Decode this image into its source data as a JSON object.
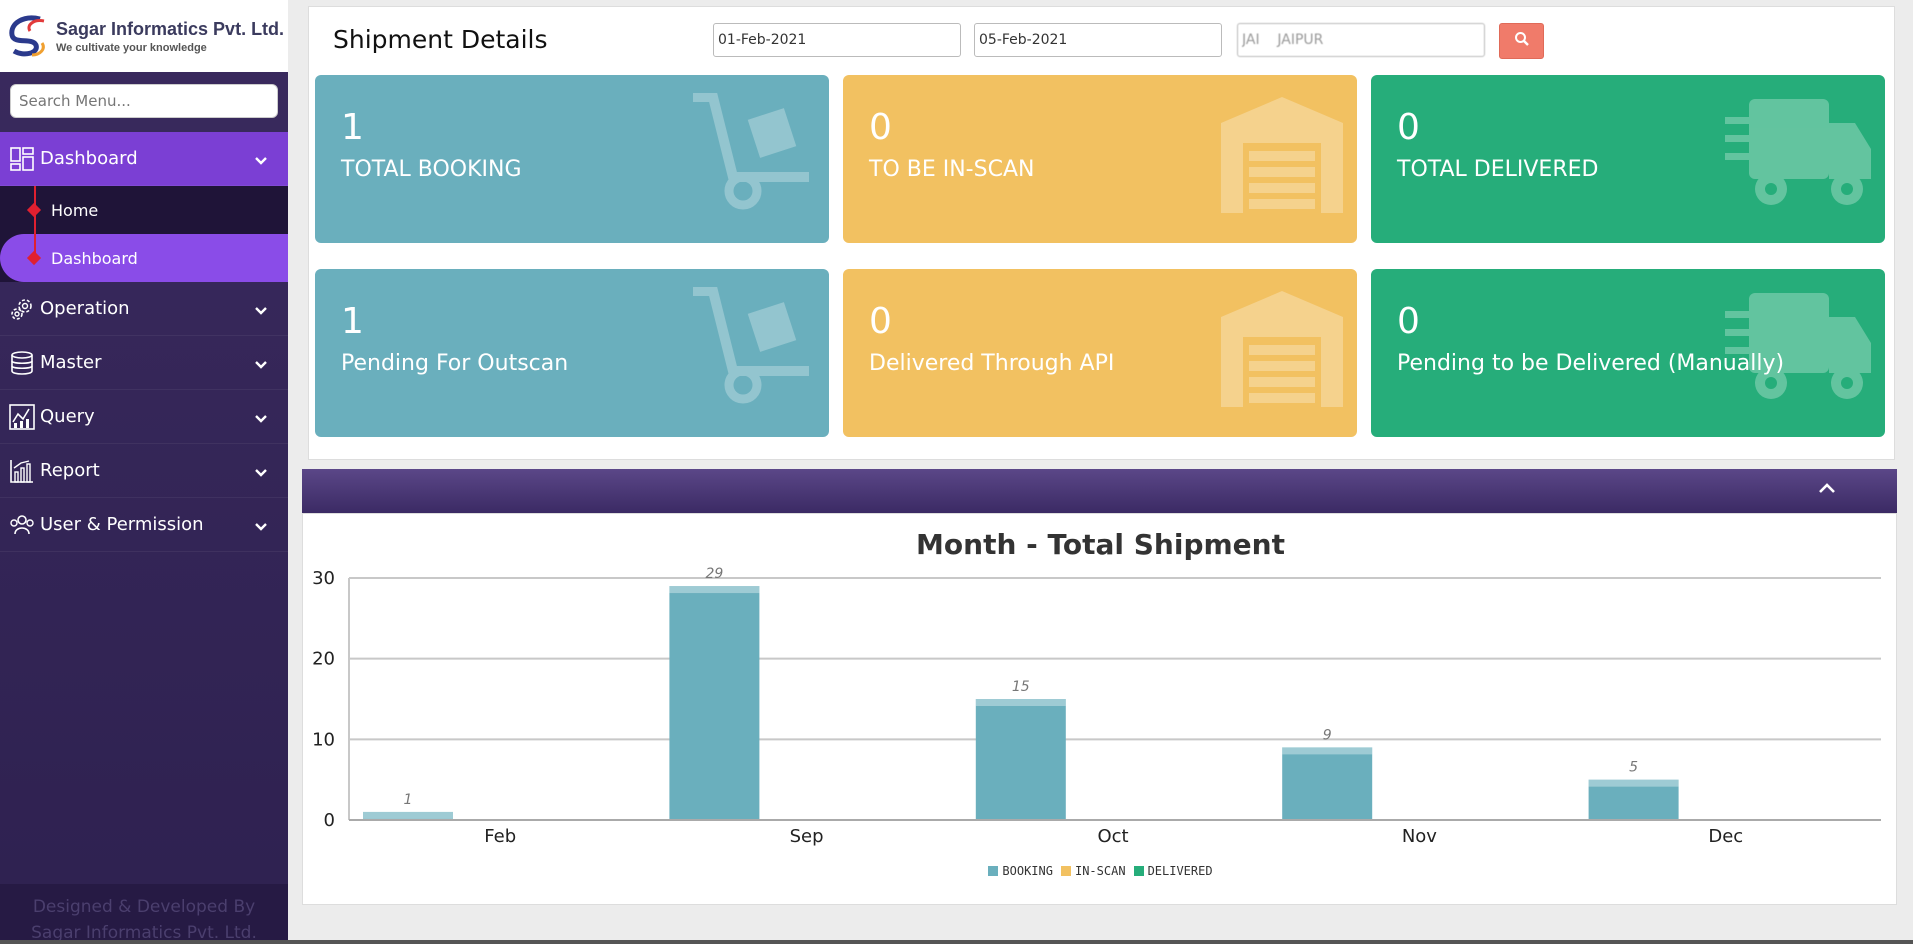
{
  "brand": {
    "name": "Sagar Informatics Pvt. Ltd.",
    "tagline": "We cultivate your knowledge"
  },
  "sidebar": {
    "search_placeholder": "Search Menu...",
    "items": [
      {
        "label": "Dashboard",
        "icon": "dashboard-icon"
      },
      {
        "label": "Operation",
        "icon": "gears-icon"
      },
      {
        "label": "Master",
        "icon": "database-icon"
      },
      {
        "label": "Query",
        "icon": "chart-query-icon"
      },
      {
        "label": "Report",
        "icon": "bar-report-icon"
      },
      {
        "label": "User & Permission",
        "icon": "users-icon"
      }
    ],
    "sub_items": [
      {
        "label": "Home"
      },
      {
        "label": "Dashboard"
      }
    ],
    "footer_line1": "Designed & Developed By",
    "footer_line2": "Sagar Informatics Pvt. Ltd."
  },
  "header": {
    "title": "Shipment Details",
    "from_date": "01-Feb-2021",
    "to_date": "05-Feb-2021",
    "branch": "JAI    JAIPUR"
  },
  "cards": [
    {
      "value": "1",
      "label": "TOTAL BOOKING",
      "color": "#6aafbd",
      "icon": "trolley-icon"
    },
    {
      "value": "0",
      "label": "TO BE IN-SCAN",
      "color": "#f2c161",
      "icon": "warehouse-icon"
    },
    {
      "value": "0",
      "label": "TOTAL DELIVERED",
      "color": "#26ad7a",
      "icon": "truck-icon"
    },
    {
      "value": "1",
      "label": "Pending For Outscan",
      "color": "#6aafbd",
      "icon": "trolley-icon"
    },
    {
      "value": "0",
      "label": "Delivered Through API",
      "color": "#f2c161",
      "icon": "warehouse-icon"
    },
    {
      "value": "0",
      "label": "Pending to be Delivered (Manually)",
      "color": "#26ad7a",
      "icon": "truck-icon"
    }
  ],
  "chart_data": {
    "type": "bar",
    "title": "Month - Total Shipment",
    "categories": [
      "Feb",
      "Sep",
      "Oct",
      "Nov",
      "Dec"
    ],
    "series": [
      {
        "name": "BOOKING",
        "color": "#6aafbd",
        "values": [
          1,
          29,
          15,
          9,
          5
        ]
      },
      {
        "name": "IN-SCAN",
        "color": "#f2c161",
        "values": [
          0,
          0,
          0,
          0,
          0
        ]
      },
      {
        "name": "DELIVERED",
        "color": "#26ad7a",
        "values": [
          0,
          0,
          0,
          0,
          0
        ]
      }
    ],
    "yticks": [
      "0",
      "10",
      "20",
      "30"
    ],
    "ylim": [
      0,
      30
    ],
    "grid": true,
    "legend": "bottom"
  }
}
